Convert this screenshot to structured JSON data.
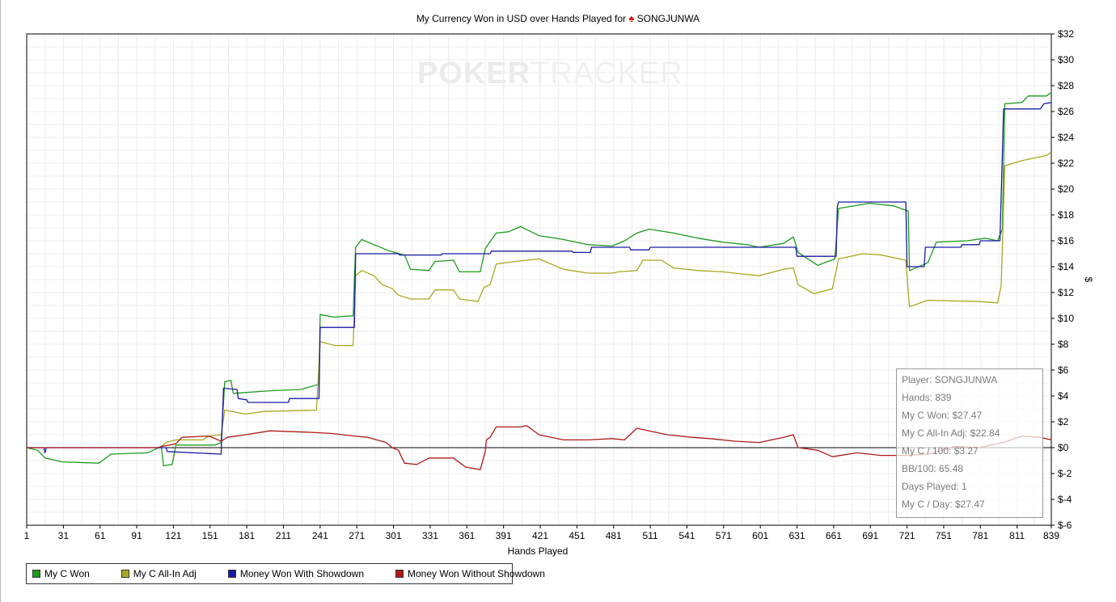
{
  "title_prefix": "My Currency Won in USD over Hands Played for",
  "title_player": "SONGJUNWA",
  "watermark": {
    "bold": "POKER",
    "light": "TRACKER"
  },
  "colors": {
    "my_c_won": "#1a9c1a",
    "all_in_adj": "#a8a820",
    "showdown": "#1a1aa8",
    "non_showdown": "#b01818"
  },
  "tooltip": {
    "player": "Player: SONGJUNWA",
    "hands": "Hands: 839",
    "my_c_won": "My C Won: $27.47",
    "all_in_adj": "My C All-In Adj: $22.84",
    "per_100": "My C / 100: $3.27",
    "bb_100": "BB/100: 65.48",
    "days": "Days Played: 1",
    "per_day": "My C / Day: $27.47"
  },
  "chart_data": {
    "type": "line",
    "title": "My Currency Won in USD over Hands Played for SONGJUNWA",
    "xlabel": "Hands Played",
    "ylabel": "$",
    "xlim": [
      1,
      839
    ],
    "ylim": [
      -6,
      32
    ],
    "x_ticks": [
      1,
      31,
      61,
      91,
      121,
      151,
      181,
      211,
      241,
      271,
      301,
      331,
      361,
      391,
      421,
      451,
      481,
      511,
      541,
      571,
      601,
      631,
      661,
      691,
      721,
      751,
      781,
      811,
      839
    ],
    "y_ticks": [
      32,
      30,
      28,
      26,
      24,
      22,
      20,
      18,
      16,
      14,
      12,
      10,
      8,
      6,
      4,
      2,
      0,
      -2,
      -4,
      -6
    ],
    "y_tick_labels": [
      "$32",
      "$30",
      "$28",
      "$26",
      "$24",
      "$22",
      "$20",
      "$18",
      "$16",
      "$14",
      "$12",
      "$10",
      "$8",
      "$6",
      "$4",
      "$2",
      "$0",
      "$-2",
      "$-4",
      "$-6"
    ],
    "grid": true,
    "legend_position": "bottom-left",
    "series": [
      {
        "name": "My C Won",
        "color": "#1a9c1a",
        "points": [
          [
            1,
            0
          ],
          [
            10,
            -0.2
          ],
          [
            16,
            -0.8
          ],
          [
            30,
            -1.1
          ],
          [
            60,
            -1.2
          ],
          [
            70,
            -0.5
          ],
          [
            100,
            -0.4
          ],
          [
            111,
            0.1
          ],
          [
            113,
            -1.4
          ],
          [
            120,
            -1.3
          ],
          [
            123,
            0.2
          ],
          [
            155,
            0.2
          ],
          [
            160,
            0.4
          ],
          [
            163,
            5.1
          ],
          [
            168,
            5.2
          ],
          [
            170,
            4.2
          ],
          [
            200,
            4.4
          ],
          [
            225,
            4.5
          ],
          [
            240,
            4.9
          ],
          [
            241,
            10.3
          ],
          [
            252,
            10.1
          ],
          [
            268,
            10.2
          ],
          [
            270,
            15.5
          ],
          [
            275,
            16.1
          ],
          [
            285,
            15.7
          ],
          [
            298,
            15.2
          ],
          [
            310,
            14.9
          ],
          [
            315,
            13.8
          ],
          [
            330,
            13.7
          ],
          [
            335,
            14.4
          ],
          [
            350,
            14.5
          ],
          [
            355,
            13.6
          ],
          [
            372,
            13.6
          ],
          [
            376,
            15.4
          ],
          [
            385,
            16.6
          ],
          [
            395,
            16.7
          ],
          [
            405,
            17.1
          ],
          [
            420,
            16.4
          ],
          [
            440,
            16.1
          ],
          [
            460,
            15.7
          ],
          [
            480,
            15.6
          ],
          [
            490,
            16.0
          ],
          [
            500,
            16.6
          ],
          [
            510,
            16.9
          ],
          [
            530,
            16.6
          ],
          [
            550,
            16.2
          ],
          [
            570,
            15.9
          ],
          [
            590,
            15.7
          ],
          [
            600,
            15.5
          ],
          [
            620,
            15.8
          ],
          [
            628,
            16.3
          ],
          [
            632,
            15.1
          ],
          [
            648,
            14.1
          ],
          [
            662,
            14.6
          ],
          [
            665,
            18.5
          ],
          [
            690,
            18.9
          ],
          [
            710,
            18.7
          ],
          [
            722,
            18.3
          ],
          [
            723,
            13.7
          ],
          [
            738,
            14.3
          ],
          [
            745,
            15.9
          ],
          [
            770,
            16.0
          ],
          [
            785,
            16.2
          ],
          [
            795,
            16.0
          ],
          [
            799,
            16.9
          ],
          [
            801,
            26.6
          ],
          [
            815,
            26.7
          ],
          [
            820,
            27.2
          ],
          [
            835,
            27.2
          ],
          [
            839,
            27.47
          ]
        ]
      },
      {
        "name": "My C All-In Adj",
        "color": "#a8a820",
        "points": [
          [
            110,
            0
          ],
          [
            115,
            0.4
          ],
          [
            123,
            0.6
          ],
          [
            145,
            0.6
          ],
          [
            150,
            0.9
          ],
          [
            160,
            1.0
          ],
          [
            163,
            2.9
          ],
          [
            180,
            2.6
          ],
          [
            195,
            2.8
          ],
          [
            238,
            2.9
          ],
          [
            241,
            8.2
          ],
          [
            253,
            7.9
          ],
          [
            268,
            7.9
          ],
          [
            270,
            13.3
          ],
          [
            275,
            13.7
          ],
          [
            285,
            13.3
          ],
          [
            292,
            12.6
          ],
          [
            300,
            12.3
          ],
          [
            305,
            11.8
          ],
          [
            315,
            11.5
          ],
          [
            330,
            11.5
          ],
          [
            335,
            12.2
          ],
          [
            350,
            12.2
          ],
          [
            355,
            11.5
          ],
          [
            370,
            11.3
          ],
          [
            375,
            12.4
          ],
          [
            380,
            12.6
          ],
          [
            385,
            14.2
          ],
          [
            400,
            14.4
          ],
          [
            420,
            14.6
          ],
          [
            440,
            13.8
          ],
          [
            460,
            13.5
          ],
          [
            480,
            13.5
          ],
          [
            485,
            13.6
          ],
          [
            500,
            13.7
          ],
          [
            505,
            14.5
          ],
          [
            520,
            14.5
          ],
          [
            530,
            13.9
          ],
          [
            550,
            13.7
          ],
          [
            570,
            13.6
          ],
          [
            590,
            13.4
          ],
          [
            600,
            13.3
          ],
          [
            620,
            13.8
          ],
          [
            628,
            13.9
          ],
          [
            632,
            12.6
          ],
          [
            645,
            11.9
          ],
          [
            660,
            12.3
          ],
          [
            665,
            14.6
          ],
          [
            685,
            15.0
          ],
          [
            700,
            14.9
          ],
          [
            720,
            14.5
          ],
          [
            723,
            10.9
          ],
          [
            738,
            11.4
          ],
          [
            780,
            11.3
          ],
          [
            795,
            11.2
          ],
          [
            798,
            12.5
          ],
          [
            801,
            21.8
          ],
          [
            815,
            22.2
          ],
          [
            835,
            22.6
          ],
          [
            839,
            22.84
          ]
        ]
      },
      {
        "name": "Money Won With Showdown",
        "color": "#1a1aa8",
        "points": [
          [
            1,
            0
          ],
          [
            15,
            0
          ],
          [
            16,
            -0.4
          ],
          [
            17,
            0
          ],
          [
            48,
            0
          ],
          [
            115,
            0
          ],
          [
            116,
            -0.3
          ],
          [
            160,
            -0.5
          ],
          [
            162,
            4.6
          ],
          [
            173,
            4.5
          ],
          [
            174,
            3.8
          ],
          [
            181,
            3.7
          ],
          [
            182,
            3.5
          ],
          [
            215,
            3.5
          ],
          [
            216,
            3.8
          ],
          [
            240,
            3.8
          ],
          [
            241,
            9.3
          ],
          [
            269,
            9.3
          ],
          [
            270,
            15.0
          ],
          [
            305,
            15.0
          ],
          [
            306,
            14.9
          ],
          [
            340,
            14.9
          ],
          [
            341,
            15.0
          ],
          [
            380,
            15.0
          ],
          [
            381,
            15.2
          ],
          [
            447,
            15.2
          ],
          [
            448,
            15.1
          ],
          [
            462,
            15.1
          ],
          [
            463,
            15.5
          ],
          [
            494,
            15.5
          ],
          [
            495,
            15.3
          ],
          [
            510,
            15.3
          ],
          [
            511,
            15.5
          ],
          [
            630,
            15.5
          ],
          [
            631,
            14.8
          ],
          [
            663,
            14.8
          ],
          [
            664,
            18.6
          ],
          [
            665,
            19.0
          ],
          [
            720,
            19.0
          ],
          [
            721,
            14.0
          ],
          [
            735,
            14.0
          ],
          [
            736,
            15.5
          ],
          [
            765,
            15.5
          ],
          [
            766,
            15.7
          ],
          [
            780,
            15.7
          ],
          [
            781,
            16.0
          ],
          [
            797,
            16.0
          ],
          [
            800,
            26.2
          ],
          [
            830,
            26.2
          ],
          [
            833,
            26.6
          ],
          [
            839,
            26.7
          ]
        ]
      },
      {
        "name": "Money Won Without Showdown",
        "color": "#b01818",
        "points": [
          [
            1,
            0
          ],
          [
            108,
            0
          ],
          [
            112,
            0.1
          ],
          [
            123,
            0.3
          ],
          [
            128,
            0.8
          ],
          [
            150,
            0.9
          ],
          [
            160,
            0.5
          ],
          [
            165,
            0.8
          ],
          [
            180,
            1.0
          ],
          [
            200,
            1.3
          ],
          [
            230,
            1.2
          ],
          [
            250,
            1.1
          ],
          [
            269,
            0.9
          ],
          [
            280,
            0.8
          ],
          [
            295,
            0.4
          ],
          [
            300,
            0
          ],
          [
            305,
            -0.2
          ],
          [
            310,
            -1.2
          ],
          [
            320,
            -1.3
          ],
          [
            330,
            -0.8
          ],
          [
            350,
            -0.8
          ],
          [
            360,
            -1.5
          ],
          [
            372,
            -1.7
          ],
          [
            376,
            -0.3
          ],
          [
            377,
            0.6
          ],
          [
            380,
            0.8
          ],
          [
            385,
            1.6
          ],
          [
            405,
            1.6
          ],
          [
            410,
            1.7
          ],
          [
            420,
            1.0
          ],
          [
            440,
            0.6
          ],
          [
            460,
            0.6
          ],
          [
            480,
            0.7
          ],
          [
            490,
            0.6
          ],
          [
            500,
            1.5
          ],
          [
            510,
            1.3
          ],
          [
            525,
            1.0
          ],
          [
            545,
            0.8
          ],
          [
            560,
            0.7
          ],
          [
            580,
            0.5
          ],
          [
            600,
            0.4
          ],
          [
            620,
            0.8
          ],
          [
            628,
            1.0
          ],
          [
            632,
            0
          ],
          [
            648,
            -0.2
          ],
          [
            660,
            -0.7
          ],
          [
            680,
            -0.4
          ],
          [
            700,
            -0.6
          ],
          [
            720,
            -0.6
          ],
          [
            738,
            -0.5
          ],
          [
            760,
            0.1
          ],
          [
            780,
            0
          ],
          [
            800,
            0.4
          ],
          [
            815,
            0.9
          ],
          [
            830,
            0.8
          ],
          [
            839,
            0.6
          ]
        ]
      }
    ]
  }
}
